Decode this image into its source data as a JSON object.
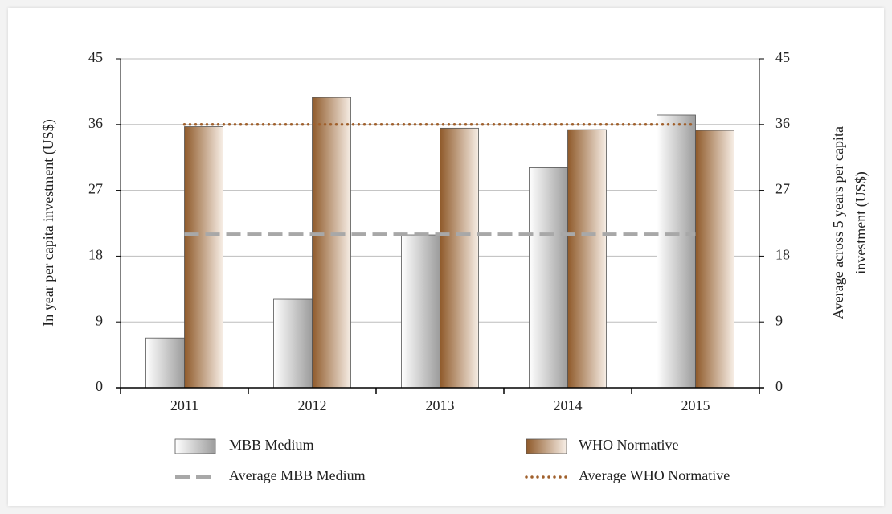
{
  "chart_data": {
    "type": "bar",
    "categories": [
      "2011",
      "2012",
      "2013",
      "2014",
      "2015"
    ],
    "series": [
      {
        "name": "MBB Medium",
        "color": "#9c9c9c",
        "values": [
          6.8,
          12.1,
          20.9,
          30.1,
          37.3
        ]
      },
      {
        "name": "WHO Normative",
        "color": "#8f5a2a",
        "values": [
          35.7,
          39.7,
          35.5,
          35.3,
          35.2
        ]
      },
      {
        "name": "Average MBB Medium",
        "color": "#a8a8a8",
        "type": "dashed-line",
        "axis": "y2",
        "values": [
          21,
          21,
          21,
          21,
          21
        ]
      },
      {
        "name": "Average WHO Normative",
        "color": "#a0602c",
        "type": "dotted-line",
        "axis": "y2",
        "values": [
          36,
          36,
          36,
          36,
          36
        ]
      }
    ],
    "ylabel": "In year per capita investment (US$)",
    "y2label": [
      "Average across 5 years per capita",
      "investment (US$)"
    ],
    "ylim": [
      0,
      45
    ],
    "yticks": [
      0,
      9,
      18,
      27,
      36,
      45
    ],
    "y2lim": [
      0,
      45
    ],
    "y2ticks": [
      0,
      9,
      18,
      27,
      36,
      45
    ],
    "grid": true,
    "legend": "bottom"
  }
}
